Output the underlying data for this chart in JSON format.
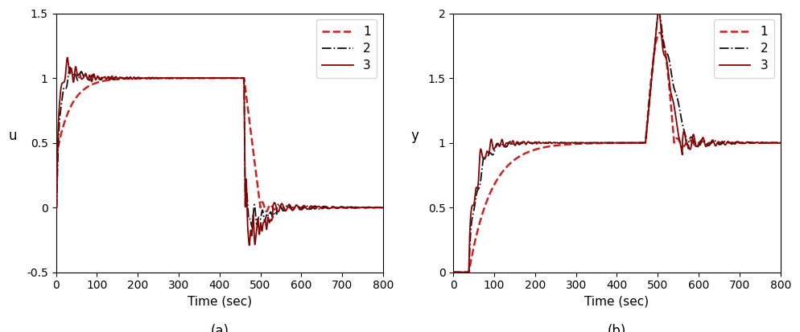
{
  "plot_a": {
    "ylabel": "u",
    "xlabel": "Time (sec)",
    "label": "(a)",
    "ylim": [
      -0.5,
      1.5
    ],
    "xlim": [
      0,
      800
    ],
    "yticks": [
      -0.5,
      0,
      0.5,
      1,
      1.5
    ],
    "xticks": [
      0,
      100,
      200,
      300,
      400,
      500,
      600,
      700,
      800
    ]
  },
  "plot_b": {
    "ylabel": "y",
    "xlabel": "Time (sec)",
    "label": "(b)",
    "ylim": [
      0,
      2
    ],
    "xlim": [
      0,
      800
    ],
    "yticks": [
      0,
      0.5,
      1,
      1.5,
      2
    ],
    "xticks": [
      0,
      100,
      200,
      300,
      400,
      500,
      600,
      700,
      800
    ]
  },
  "legend": [
    "1",
    "2",
    "3"
  ],
  "figsize": [
    9.94,
    4.13
  ],
  "dpi": 100,
  "background_color": "#ffffff"
}
